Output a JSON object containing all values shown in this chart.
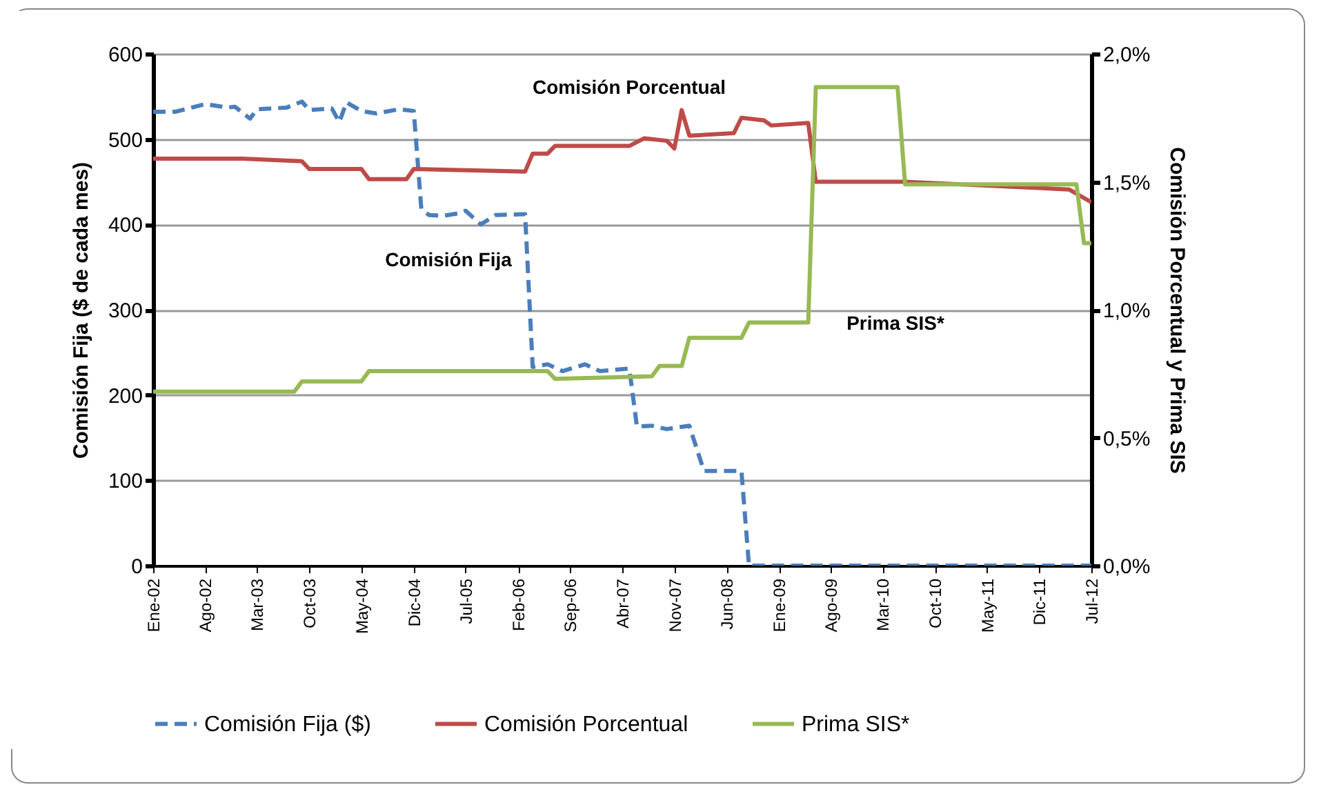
{
  "chart_data": {
    "type": "line",
    "ylabel": "Comisión Fija ($ de cada mes)",
    "y2label": "Comisión Porcentual y Prima SIS",
    "xlim": [
      "2002-01",
      "2012-07"
    ],
    "xticks": [
      {
        "value": "2002-01",
        "label": "Ene-02"
      },
      {
        "value": "2002-08",
        "label": "Ago-02"
      },
      {
        "value": "2003-03",
        "label": "Mar-03"
      },
      {
        "value": "2003-10",
        "label": "Oct-03"
      },
      {
        "value": "2004-05",
        "label": "May-04"
      },
      {
        "value": "2004-12",
        "label": "Dic-04"
      },
      {
        "value": "2005-07",
        "label": "Jul-05"
      },
      {
        "value": "2006-02",
        "label": "Feb-06"
      },
      {
        "value": "2006-09",
        "label": "Sep-06"
      },
      {
        "value": "2007-04",
        "label": "Abr-07"
      },
      {
        "value": "2007-11",
        "label": "Nov-07"
      },
      {
        "value": "2008-06",
        "label": "Jun-08"
      },
      {
        "value": "2009-01",
        "label": "Ene-09"
      },
      {
        "value": "2009-08",
        "label": "Ago-09"
      },
      {
        "value": "2010-03",
        "label": "Mar-10"
      },
      {
        "value": "2010-10",
        "label": "Oct-10"
      },
      {
        "value": "2011-05",
        "label": "May-11"
      },
      {
        "value": "2011-12",
        "label": "Dic-11"
      },
      {
        "value": "2012-07",
        "label": "Jul-12"
      }
    ],
    "ylim": [
      0,
      600
    ],
    "yticks": [
      0,
      100,
      200,
      300,
      400,
      500,
      600
    ],
    "y2lim": [
      0,
      2
    ],
    "y2ticks": [
      {
        "value": 0,
        "label": "0,0%"
      },
      {
        "value": 0.5,
        "label": "0,5%"
      },
      {
        "value": 1,
        "label": "1,0%"
      },
      {
        "value": 1.5,
        "label": "1,5%"
      },
      {
        "value": 2,
        "label": "2,0%"
      }
    ],
    "grid": "y",
    "legend": "bottom",
    "series": [
      {
        "name": "Comisión Fija ($)",
        "color": "#4a7ebb",
        "line_style": "dashed",
        "x": [
          "2002-01",
          "2002-04",
          "2002-08",
          "2002-11",
          "2002-12",
          "2003-02",
          "2003-03",
          "2003-07",
          "2003-09",
          "2003-10",
          "2004-01",
          "2004-02",
          "2004-03",
          "2004-05",
          "2004-07",
          "2004-10",
          "2004-12",
          "2005-01",
          "2005-02",
          "2005-04",
          "2005-06",
          "2005-07",
          "2005-09",
          "2005-11",
          "2006-03",
          "2006-04",
          "2006-06",
          "2006-08",
          "2006-11",
          "2007-01",
          "2007-05",
          "2007-06",
          "2007-08",
          "2007-10",
          "2008-01",
          "2008-03",
          "2008-08",
          "2008-09",
          "2012-07"
        ],
        "values": [
          532,
          532,
          541,
          537,
          538,
          524,
          535,
          537,
          544,
          534,
          536,
          520,
          543,
          533,
          530,
          535,
          533,
          418,
          411,
          410,
          413,
          416,
          400,
          411,
          412,
          233,
          236,
          228,
          236,
          228,
          231,
          163,
          164,
          160,
          164,
          111,
          111,
          0,
          0
        ]
      },
      {
        "name": "Comisión Porcentual",
        "color": "#be4b48",
        "axis": "y2",
        "line_style": "solid",
        "x": [
          "2002-01",
          "2003-01",
          "2003-09",
          "2003-10",
          "2004-05",
          "2004-06",
          "2004-11",
          "2004-12",
          "2006-03",
          "2006-04",
          "2006-06",
          "2006-07",
          "2007-05",
          "2007-07",
          "2007-10",
          "2007-11",
          "2007-12",
          "2008-01",
          "2008-07",
          "2008-08",
          "2008-11",
          "2008-12",
          "2009-05",
          "2009-06",
          "2010-06",
          "2012-04",
          "2012-07"
        ],
        "values": [
          1.59,
          1.59,
          1.58,
          1.55,
          1.55,
          1.51,
          1.51,
          1.55,
          1.54,
          1.61,
          1.61,
          1.64,
          1.64,
          1.67,
          1.66,
          1.63,
          1.78,
          1.68,
          1.69,
          1.75,
          1.74,
          1.72,
          1.73,
          1.5,
          1.5,
          1.47,
          1.42
        ]
      },
      {
        "name": "Prima SIS*",
        "color": "#98b954",
        "axis": "y2",
        "line_style": "solid",
        "x": [
          "2002-01",
          "2003-08",
          "2003-09",
          "2004-05",
          "2004-06",
          "2006-06",
          "2006-07",
          "2007-08",
          "2007-09",
          "2007-12",
          "2008-01",
          "2008-08",
          "2008-09",
          "2009-05",
          "2009-06",
          "2010-05",
          "2010-06",
          "2012-05",
          "2012-06",
          "2012-07"
        ],
        "values": [
          0.68,
          0.68,
          0.72,
          0.72,
          0.76,
          0.76,
          0.73,
          0.74,
          0.78,
          0.78,
          0.89,
          0.89,
          0.95,
          0.95,
          1.87,
          1.87,
          1.49,
          1.49,
          1.26,
          1.26
        ]
      }
    ],
    "annotations": [
      "Comisión Porcentual",
      "Comisión Fija",
      "Prima SIS*"
    ]
  }
}
